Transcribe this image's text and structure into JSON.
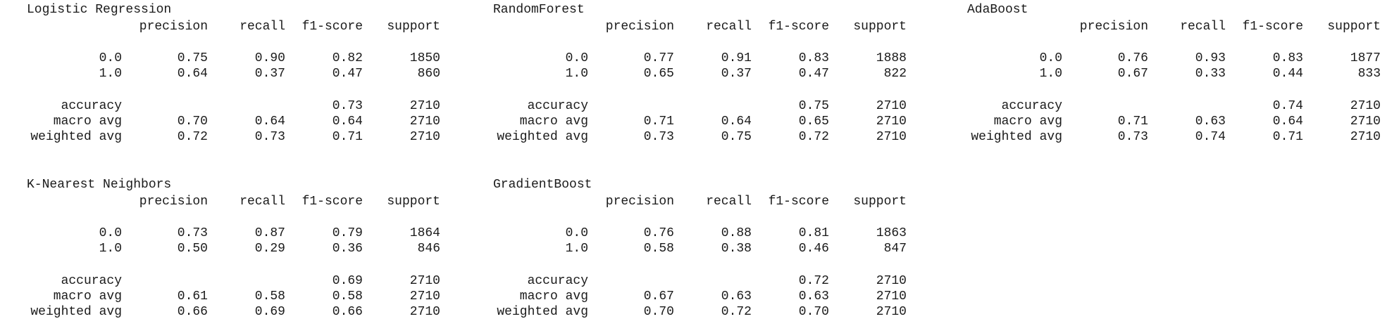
{
  "headers": {
    "precision": "precision",
    "recall": "recall",
    "f1": "f1-score",
    "support": "support"
  },
  "row_labels": {
    "class0": "0.0",
    "class1": "1.0",
    "accuracy": "accuracy",
    "macro": "macro avg",
    "weighted": "weighted avg"
  },
  "reports": [
    {
      "title": "Logistic Regression",
      "class0": {
        "precision": "0.75",
        "recall": "0.90",
        "f1": "0.82",
        "support": "1850"
      },
      "class1": {
        "precision": "0.64",
        "recall": "0.37",
        "f1": "0.47",
        "support": "860"
      },
      "accuracy": {
        "f1": "0.73",
        "support": "2710"
      },
      "macro": {
        "precision": "0.70",
        "recall": "0.64",
        "f1": "0.64",
        "support": "2710"
      },
      "weighted": {
        "precision": "0.72",
        "recall": "0.73",
        "f1": "0.71",
        "support": "2710"
      }
    },
    {
      "title": "RandomForest",
      "class0": {
        "precision": "0.77",
        "recall": "0.91",
        "f1": "0.83",
        "support": "1888"
      },
      "class1": {
        "precision": "0.65",
        "recall": "0.37",
        "f1": "0.47",
        "support": "822"
      },
      "accuracy": {
        "f1": "0.75",
        "support": "2710"
      },
      "macro": {
        "precision": "0.71",
        "recall": "0.64",
        "f1": "0.65",
        "support": "2710"
      },
      "weighted": {
        "precision": "0.73",
        "recall": "0.75",
        "f1": "0.72",
        "support": "2710"
      }
    },
    {
      "title": "AdaBoost",
      "class0": {
        "precision": "0.76",
        "recall": "0.93",
        "f1": "0.83",
        "support": "1877"
      },
      "class1": {
        "precision": "0.67",
        "recall": "0.33",
        "f1": "0.44",
        "support": "833"
      },
      "accuracy": {
        "f1": "0.74",
        "support": "2710"
      },
      "macro": {
        "precision": "0.71",
        "recall": "0.63",
        "f1": "0.64",
        "support": "2710"
      },
      "weighted": {
        "precision": "0.73",
        "recall": "0.74",
        "f1": "0.71",
        "support": "2710"
      }
    },
    {
      "title": "K-Nearest Neighbors",
      "class0": {
        "precision": "0.73",
        "recall": "0.87",
        "f1": "0.79",
        "support": "1864"
      },
      "class1": {
        "precision": "0.50",
        "recall": "0.29",
        "f1": "0.36",
        "support": "846"
      },
      "accuracy": {
        "f1": "0.69",
        "support": "2710"
      },
      "macro": {
        "precision": "0.61",
        "recall": "0.58",
        "f1": "0.58",
        "support": "2710"
      },
      "weighted": {
        "precision": "0.66",
        "recall": "0.69",
        "f1": "0.66",
        "support": "2710"
      }
    },
    {
      "title": "GradientBoost",
      "class0": {
        "precision": "0.76",
        "recall": "0.88",
        "f1": "0.81",
        "support": "1863"
      },
      "class1": {
        "precision": "0.58",
        "recall": "0.38",
        "f1": "0.46",
        "support": "847"
      },
      "accuracy": {
        "f1": "0.72",
        "support": "2710"
      },
      "macro": {
        "precision": "0.67",
        "recall": "0.63",
        "f1": "0.63",
        "support": "2710"
      },
      "weighted": {
        "precision": "0.70",
        "recall": "0.72",
        "f1": "0.70",
        "support": "2710"
      }
    }
  ]
}
